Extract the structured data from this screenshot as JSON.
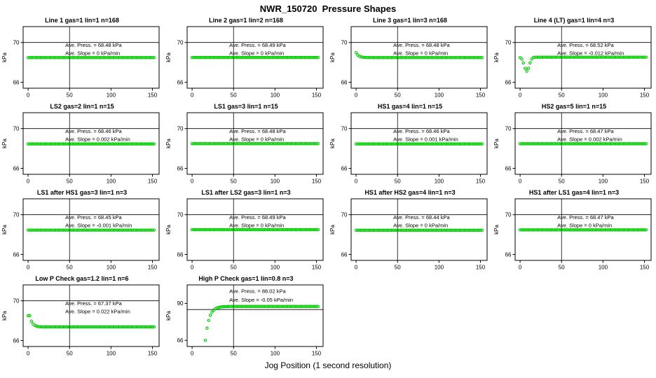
{
  "page": {
    "title": "NWR_150720  Pressure Shapes",
    "xlabel": "Jog Position (1 second resolution)"
  },
  "chart_data": {
    "type": "scatter",
    "layout": {
      "rows": 4,
      "cols": 4,
      "panels_in_last_row": 2
    },
    "x_axis": {
      "ticks": [
        0,
        50,
        100,
        150
      ],
      "range": [
        -6,
        158
      ],
      "data_start": 0,
      "data_end": 152,
      "step": 2
    },
    "y_unit_label": "kPa",
    "point_color": "#00cc00",
    "reference_line_color": "#000000",
    "panels": [
      {
        "title": "Line 1 gas=1 lin=1 n=168",
        "ave_press_kpa": 68.48,
        "ave_slope_kpa_per_min": 0,
        "annotation": [
          "Ave. Press. = 68.48 kPa",
          "Ave. Slope = 0 kPa/min"
        ],
        "yticks": [
          66,
          70
        ],
        "ylim": [
          65.4,
          71.6
        ],
        "hline": 70,
        "vline": 50,
        "shape": "flat",
        "level": 68.48
      },
      {
        "title": "Line 2 gas=1 lin=2 n=168",
        "ave_press_kpa": 68.49,
        "ave_slope_kpa_per_min": 0,
        "annotation": [
          "Ave. Press. = 68.49 kPa",
          "Ave. Slope = 0 kPa/min"
        ],
        "yticks": [
          66,
          70
        ],
        "ylim": [
          65.4,
          71.6
        ],
        "hline": 70,
        "vline": 50,
        "shape": "flat",
        "level": 68.49
      },
      {
        "title": "Line 3 gas=1 lin=3 n=168",
        "ave_press_kpa": 68.48,
        "ave_slope_kpa_per_min": 0,
        "annotation": [
          "Ave. Press. = 68.48 kPa",
          "Ave. Slope = 0 kPa/min"
        ],
        "yticks": [
          66,
          70
        ],
        "ylim": [
          65.4,
          71.6
        ],
        "hline": 70,
        "vline": 50,
        "shape": "decay",
        "level": 68.48,
        "amp": 0.5
      },
      {
        "title": "Line 4 (LT) gas=1 lin=4 n=3",
        "ave_press_kpa": 68.52,
        "ave_slope_kpa_per_min": -0.012,
        "annotation": [
          "Ave. Press. = 68.52 kPa",
          "Ave. Slope = -0.012 kPa/min"
        ],
        "yticks": [
          66,
          70
        ],
        "ylim": [
          65.4,
          71.6
        ],
        "hline": 70,
        "vline": 50,
        "shape": "dip",
        "level": 68.52,
        "depth": 1.4,
        "center": 8,
        "width": 18
      },
      {
        "title": "LS2 gas=2 lin=1 n=15",
        "ave_press_kpa": 68.46,
        "ave_slope_kpa_per_min": 0.002,
        "annotation": [
          "Ave. Press. = 68.46 kPa",
          "Ave. Slope = 0.002 kPa/min"
        ],
        "yticks": [
          66,
          70
        ],
        "ylim": [
          65.4,
          71.6
        ],
        "hline": 70,
        "vline": 50,
        "shape": "flat",
        "level": 68.46
      },
      {
        "title": "LS1 gas=3 lin=1 n=15",
        "ave_press_kpa": 68.48,
        "ave_slope_kpa_per_min": 0,
        "annotation": [
          "Ave. Press. = 68.48 kPa",
          "Ave. Slope = 0 kPa/min"
        ],
        "yticks": [
          66,
          70
        ],
        "ylim": [
          65.4,
          71.6
        ],
        "hline": 70,
        "vline": 50,
        "shape": "flat",
        "level": 68.48
      },
      {
        "title": "HS1 gas=4 lin=1 n=15",
        "ave_press_kpa": 68.46,
        "ave_slope_kpa_per_min": 0.001,
        "annotation": [
          "Ave. Press. = 68.46 kPa",
          "Ave. Slope = 0.001 kPa/min"
        ],
        "yticks": [
          66,
          70
        ],
        "ylim": [
          65.4,
          71.6
        ],
        "hline": 70,
        "vline": 50,
        "shape": "flat",
        "level": 68.46
      },
      {
        "title": "HS2 gas=5 lin=1 n=15",
        "ave_press_kpa": 68.47,
        "ave_slope_kpa_per_min": 0.002,
        "annotation": [
          "Ave. Press. = 68.47 kPa",
          "Ave. Slope = 0.002 kPa/min"
        ],
        "yticks": [
          66,
          70
        ],
        "ylim": [
          65.4,
          71.6
        ],
        "hline": 70,
        "vline": 50,
        "shape": "flat",
        "level": 68.47
      },
      {
        "title": "LS1 after HS1 gas=3 lin=1 n=3",
        "ave_press_kpa": 68.45,
        "ave_slope_kpa_per_min": -0.001,
        "annotation": [
          "Ave. Press. = 68.45 kPa",
          "Ave. Slope = -0.001 kPa/min"
        ],
        "yticks": [
          66,
          70
        ],
        "ylim": [
          65.4,
          71.6
        ],
        "hline": 70,
        "vline": 50,
        "shape": "flat",
        "level": 68.45
      },
      {
        "title": "LS1 after LS2 gas=3 lin=1 n=3",
        "ave_press_kpa": 68.49,
        "ave_slope_kpa_per_min": 0,
        "annotation": [
          "Ave. Press. = 68.49 kPa",
          "Ave. Slope = 0 kPa/min"
        ],
        "yticks": [
          66,
          70
        ],
        "ylim": [
          65.4,
          71.6
        ],
        "hline": 70,
        "vline": 50,
        "shape": "flat",
        "level": 68.49
      },
      {
        "title": "HS1 after HS2 gas=4 lin=1 n=3",
        "ave_press_kpa": 68.44,
        "ave_slope_kpa_per_min": 0,
        "annotation": [
          "Ave. Press. = 68.44 kPa",
          "Ave. Slope = 0 kPa/min"
        ],
        "yticks": [
          66,
          70
        ],
        "ylim": [
          65.4,
          71.6
        ],
        "hline": 70,
        "vline": 50,
        "shape": "flat",
        "level": 68.44
      },
      {
        "title": "HS1 after LS1 gas=4 lin=1 n=3",
        "ave_press_kpa": 68.47,
        "ave_slope_kpa_per_min": 0,
        "annotation": [
          "Ave. Press. = 68.47 kPa",
          "Ave. Slope = 0 kPa/min"
        ],
        "yticks": [
          66,
          70
        ],
        "ylim": [
          65.4,
          71.6
        ],
        "hline": 70,
        "vline": 50,
        "shape": "flat",
        "level": 68.47
      },
      {
        "title": "Low P Check gas=1.2 lin=1 n=6",
        "ave_press_kpa": 67.37,
        "ave_slope_kpa_per_min": 0.022,
        "annotation": [
          "Ave. Press. = 67.37 kPa",
          "Ave. Slope = 0.022 kPa/min"
        ],
        "yticks": [
          66,
          70
        ],
        "ylim": [
          65.4,
          71.6
        ],
        "hline": 70,
        "vline": 50,
        "shape": "step",
        "level": 67.37,
        "from": 68.5
      },
      {
        "title": "High P Check gas=1 lin=0.8 n=3",
        "ave_press_kpa": 88.02,
        "ave_slope_kpa_per_min": -0.05,
        "annotation": [
          "Ave. Press. = 88.02 kPa",
          "Ave. Slope = -0.05 kPa/min"
        ],
        "yticks": [
          66,
          90
        ],
        "ylim": [
          62,
          102
        ],
        "hline": 86,
        "vline": 50,
        "shape": "rise",
        "level": 88.02,
        "start_x": 16,
        "start_y": 66,
        "tau": 4.5,
        "ann_y": [
          0.13,
          0.27
        ]
      }
    ]
  }
}
